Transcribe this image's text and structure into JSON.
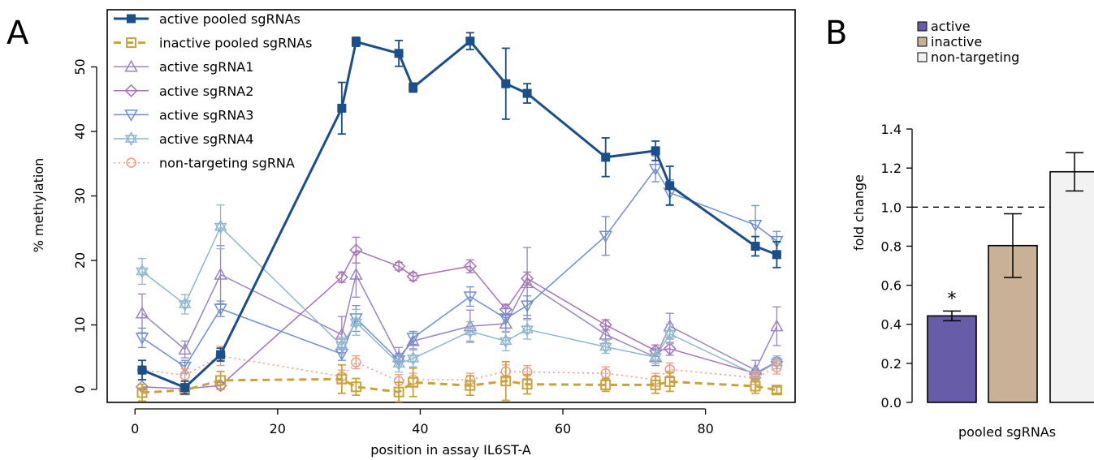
{
  "panels": {
    "a_label": "A",
    "b_label": "B"
  },
  "chart_data": [
    {
      "type": "line",
      "panel": "A",
      "xlabel": "position in assay IL6ST-A",
      "ylabel": "% methylation",
      "xlim": [
        -5,
        94
      ],
      "ylim": [
        -2,
        58
      ],
      "xticks": [
        0,
        20,
        40,
        60,
        80
      ],
      "yticks": [
        0,
        10,
        20,
        30,
        40,
        50
      ],
      "grid": false,
      "legend_position": "top-left",
      "x": [
        1,
        7,
        12,
        29,
        31,
        37,
        39,
        47,
        52,
        55,
        66,
        73,
        75,
        87,
        90
      ],
      "series": [
        {
          "name": "active pooled sgRNAs",
          "color": "#1b4f8a",
          "marker": "square-filled",
          "line": "solid",
          "width": 3,
          "values": [
            3,
            0.3,
            5.4,
            43.6,
            53.9,
            52.1,
            46.8,
            54,
            47.4,
            45.9,
            36,
            37,
            31.6,
            22.2,
            20.9
          ],
          "errors": [
            1.5,
            1,
            1,
            4,
            0.7,
            2,
            0.7,
            1.3,
            5.5,
            1.5,
            3,
            1.5,
            3,
            1.5,
            2
          ]
        },
        {
          "name": "inactive pooled sgRNAs",
          "color": "#c9a33b",
          "marker": "square-open",
          "line": "dashed",
          "width": 3,
          "values": [
            -0.5,
            -0.1,
            1.4,
            1.6,
            0.4,
            -0.4,
            1.1,
            0.6,
            1.3,
            0.8,
            0.7,
            0.7,
            1.2,
            0.5,
            -0.1
          ],
          "errors": [
            1.3,
            0.6,
            1.4,
            2.2,
            1.3,
            1.5,
            2.2,
            1.5,
            3,
            1.5,
            1,
            1.3,
            1.5,
            1.1,
            0.5
          ]
        },
        {
          "name": "active sgRNA1",
          "color": "#9b85c1",
          "marker": "triangle-up",
          "line": "solid",
          "width": 1.5,
          "values": [
            11.8,
            6.2,
            17.8,
            8.5,
            17.8,
            5,
            7.5,
            9.8,
            10.2,
            16.5,
            8.5,
            5,
            9.8,
            3,
            9.8
          ],
          "errors": [
            3,
            1.3,
            4.5,
            2.8,
            3.5,
            1.5,
            1.2,
            2.5,
            1.3,
            5.5,
            1.3,
            1.3,
            2,
            1.5,
            3
          ]
        },
        {
          "name": "active sgRNA2",
          "color": "#a673b8",
          "marker": "diamond",
          "line": "solid",
          "width": 1.5,
          "values": [
            0.4,
            0.1,
            0.6,
            17.4,
            21.6,
            19.1,
            17.5,
            19.1,
            12.4,
            17.2,
            10,
            6,
            6.3,
            2.5,
            4.3
          ],
          "errors": [
            0.4,
            0.3,
            0.5,
            0.8,
            2,
            0.6,
            0.6,
            1,
            0.8,
            1,
            0.8,
            0.9,
            1,
            0.5,
            0.6
          ]
        },
        {
          "name": "active sgRNA3",
          "color": "#6f8fd0",
          "marker": "triangle-down",
          "line": "solid",
          "width": 1.5,
          "values": [
            8,
            3.5,
            12.5,
            5.5,
            11,
            4.5,
            8,
            14.4,
            11,
            13,
            23.8,
            34.2,
            30.5,
            25.5,
            23
          ],
          "errors": [
            1.5,
            1,
            1.2,
            1,
            2,
            1,
            1,
            1.5,
            1.5,
            1.5,
            3,
            2,
            2,
            3,
            1.5
          ]
        },
        {
          "name": "active sgRNA4",
          "color": "#8fb7cf",
          "marker": "star-of-david",
          "line": "solid",
          "width": 1.5,
          "values": [
            18.3,
            13.2,
            25.2,
            6.8,
            10.4,
            4,
            4.8,
            9,
            7.5,
            9.3,
            6.6,
            5,
            8.6,
            2.3,
            4.2
          ],
          "errors": [
            2,
            1.5,
            3.4,
            1.3,
            2,
            1.3,
            1.3,
            1.5,
            1.5,
            1.5,
            1,
            1,
            1.5,
            1,
            1
          ]
        },
        {
          "name": "non-targeting sgRNA",
          "color": "#ef9a80",
          "marker": "circle-open",
          "line": "dotted",
          "width": 1.5,
          "values": [
            3,
            2.2,
            5.2,
            2,
            4.2,
            1.3,
            1.5,
            1.5,
            2.8,
            2.7,
            2.5,
            1.5,
            3.1,
            1.8,
            3.4
          ],
          "errors": [
            1.5,
            1,
            1.5,
            1,
            1,
            1,
            1,
            1,
            1,
            1,
            1,
            1,
            1,
            1,
            1
          ]
        }
      ]
    },
    {
      "type": "bar",
      "panel": "B",
      "xlabel": "pooled sgRNAs",
      "ylabel": "fold change",
      "ylim": [
        0,
        1.4
      ],
      "yticks": [
        "0.0",
        "0.2",
        "0.4",
        "0.6",
        "0.8",
        "1.0",
        "1.2",
        "1.4"
      ],
      "reference_line": 1.0,
      "legend_position": "top-left",
      "categories": [
        "active",
        "inactive",
        "non-targeting"
      ],
      "values": [
        0.443,
        0.803,
        1.181
      ],
      "errors": [
        0.025,
        0.163,
        0.098
      ],
      "colors": [
        "#665ca8",
        "#c9b197",
        "#f2f2f2"
      ],
      "annotations": [
        {
          "category": "active",
          "text": "*"
        }
      ]
    }
  ]
}
